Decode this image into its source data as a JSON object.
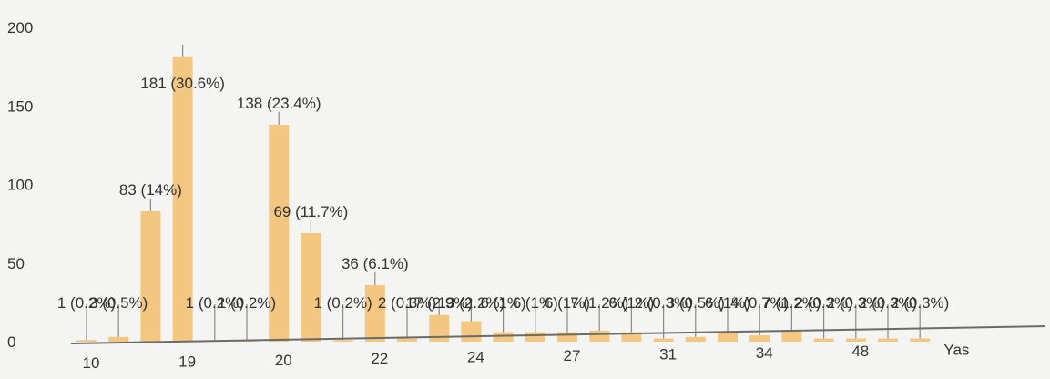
{
  "chart_data": {
    "type": "bar",
    "title": "",
    "xlabel": "",
    "ylabel": "",
    "ylim": [
      0,
      200
    ],
    "y_ticks": [
      0,
      50,
      100,
      150,
      200
    ],
    "grid": false,
    "legend": "none",
    "bar_color": "#f3c77f",
    "categories": [
      "",
      "",
      "",
      "",
      "",
      "",
      "",
      "",
      "",
      "",
      "",
      "",
      "",
      "",
      "",
      "",
      "",
      "",
      "",
      "",
      "",
      "",
      "",
      "",
      "",
      "",
      ""
    ],
    "x_tick_labels": [
      "10",
      "19",
      "20",
      "22",
      "24",
      "27",
      "31",
      "34",
      "48",
      "Yas"
    ],
    "values": [
      1,
      3,
      83,
      181,
      1,
      1,
      138,
      69,
      1,
      36,
      2,
      17,
      13,
      6,
      6,
      6,
      7,
      6,
      2,
      3,
      6,
      4,
      7,
      2,
      2,
      2,
      2
    ],
    "data_labels": [
      "1 (0.2%)",
      "3 (0.5%)",
      "83 (14%)",
      "181 (30.6%)",
      "1 (0.2%)",
      "1 (0.2%)",
      "138 (23.4%)",
      "69 (11.7%)",
      "1 (0.2%)",
      "36 (6.1%)",
      "2 (0.3%)",
      "17 (2.9%)",
      "13 (2.2%)",
      "6 (1%)",
      "6 (1%)",
      "6 (1%)",
      "7 (1.2%)",
      "6 (1%)",
      "2 (0.3%)",
      "3 (0.5%)",
      "6 (1%)",
      "4 (0.7%)",
      "7 (1.2%)",
      "2 (0.3%)",
      "2 (0.3%)",
      "2 (0.3%)",
      "2 (0.3%)"
    ]
  }
}
